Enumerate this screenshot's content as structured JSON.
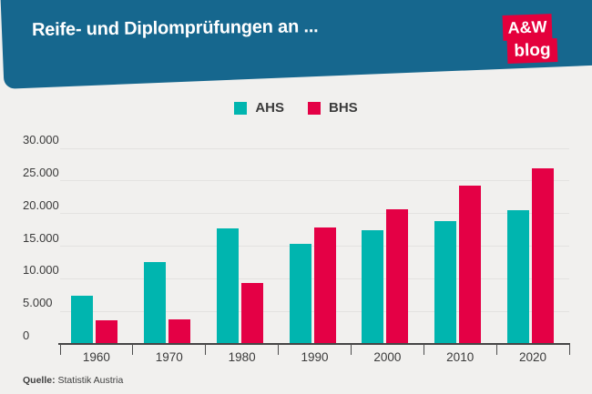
{
  "header": {
    "title": "Reife- und Diplomprüfungen an ...",
    "banner_color": "#16678e",
    "logo": {
      "line1": "A&W",
      "line2": "blog",
      "color": "#e4003c"
    }
  },
  "legend": [
    {
      "label": "AHS",
      "color": "#00b5af"
    },
    {
      "label": "BHS",
      "color": "#e40045"
    }
  ],
  "chart_data": {
    "type": "bar",
    "categories": [
      "1960",
      "1970",
      "1980",
      "1990",
      "2000",
      "2010",
      "2020"
    ],
    "series": [
      {
        "name": "AHS",
        "color": "#00b5af",
        "values": [
          7400,
          12500,
          17700,
          15400,
          17400,
          18900,
          20500
        ]
      },
      {
        "name": "BHS",
        "color": "#e40045",
        "values": [
          3600,
          3800,
          9400,
          17900,
          20700,
          24300,
          27000
        ]
      }
    ],
    "title": "Reife- und Diplomprüfungen an ...",
    "xlabel": "",
    "ylabel": "",
    "ylim": [
      0,
      30000
    ],
    "ytick_step": 5000,
    "ytick_labels": [
      "0",
      "5.000",
      "10.000",
      "15.000",
      "20.000",
      "25.000",
      "30.000"
    ],
    "grid": true,
    "legend_position": "top-center"
  },
  "source": {
    "prefix": "Quelle:",
    "text": "Statistik Austria"
  }
}
